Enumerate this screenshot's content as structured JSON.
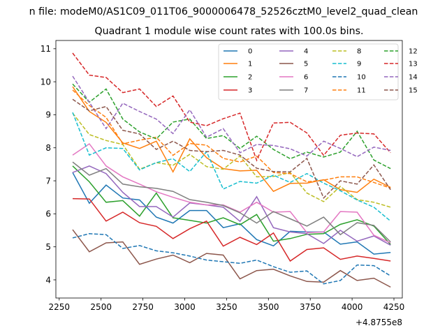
{
  "figure": {
    "suptitle": "n file: modeM0/AS1C09_011T06_9000006478_52526cztM0_level2_quad_clean",
    "title": "Quadrant 1 module wise count rates with 100.0s bins.",
    "x_offset_label": "+4.8755e8"
  },
  "chart_data": {
    "type": "line",
    "title": "Quadrant 1 module wise count rates with 100.0s bins.",
    "xlabel": "",
    "ylabel": "",
    "x_offset": 487550000,
    "xlim": [
      2230,
      4300
    ],
    "ylim": [
      3.45,
      11.25
    ],
    "xticks": [
      2250,
      2500,
      2750,
      3000,
      3250,
      3500,
      3750,
      4000,
      4250
    ],
    "yticks": [
      4,
      5,
      6,
      7,
      8,
      9,
      10,
      11
    ],
    "legend_position": "top-right",
    "x": [
      2330,
      2430,
      2530,
      2630,
      2730,
      2830,
      2930,
      3030,
      3130,
      3230,
      3330,
      3430,
      3530,
      3630,
      3730,
      3830,
      3930,
      4030,
      4130,
      4230
    ],
    "series": [
      {
        "name": "0",
        "color": "#1f77b4",
        "style": "solid",
        "values": [
          7.25,
          6.32,
          6.87,
          6.48,
          6.42,
          5.9,
          5.72,
          6.1,
          6.1,
          5.58,
          5.7,
          5.22,
          5.03,
          5.47,
          5.45,
          5.45,
          5.08,
          5.15,
          4.78,
          4.83
        ]
      },
      {
        "name": "1",
        "color": "#ff7f0e",
        "style": "solid",
        "values": [
          9.85,
          9.1,
          8.77,
          8.15,
          7.98,
          8.2,
          7.27,
          8.27,
          7.7,
          7.37,
          7.3,
          7.32,
          6.68,
          6.92,
          6.93,
          7.03,
          6.73,
          6.65,
          7.05,
          6.8
        ]
      },
      {
        "name": "2",
        "color": "#2ca02c",
        "style": "solid",
        "values": [
          7.45,
          6.97,
          6.35,
          6.4,
          5.93,
          6.63,
          5.88,
          5.8,
          5.72,
          5.88,
          5.67,
          5.98,
          5.17,
          5.25,
          5.38,
          5.4,
          5.68,
          5.82,
          5.63,
          5.07
        ]
      },
      {
        "name": "3",
        "color": "#d62728",
        "style": "solid",
        "values": [
          6.46,
          6.45,
          5.78,
          6.05,
          5.73,
          5.62,
          5.25,
          5.55,
          5.78,
          5.02,
          5.29,
          5.07,
          5.42,
          4.57,
          4.92,
          4.97,
          4.62,
          4.72,
          4.65,
          4.57
        ]
      },
      {
        "name": "4",
        "color": "#9467bd",
        "style": "solid",
        "values": [
          7.25,
          7.45,
          7.22,
          6.65,
          6.22,
          6.22,
          5.9,
          6.33,
          6.27,
          6.2,
          5.77,
          6.52,
          5.58,
          5.45,
          5.4,
          5.1,
          5.5,
          5.17,
          5.33,
          5.05
        ]
      },
      {
        "name": "5",
        "color": "#8c564b",
        "style": "solid",
        "values": [
          5.52,
          4.85,
          5.12,
          5.15,
          4.47,
          4.63,
          4.75,
          4.52,
          4.8,
          4.75,
          4.03,
          4.28,
          4.32,
          4.12,
          3.95,
          3.93,
          4.28,
          3.98,
          4.05,
          3.78
        ]
      },
      {
        "name": "6",
        "color": "#e377c2",
        "style": "solid",
        "values": [
          7.78,
          8.12,
          7.45,
          7.12,
          6.9,
          6.67,
          6.5,
          6.35,
          6.27,
          6.27,
          6.05,
          6.35,
          6.05,
          6.07,
          5.43,
          5.45,
          6.07,
          6.05,
          5.35,
          5.12
        ]
      },
      {
        "name": "7",
        "color": "#7f7f7f",
        "style": "solid",
        "values": [
          7.57,
          7.17,
          7.37,
          6.9,
          6.82,
          6.77,
          6.68,
          6.43,
          6.35,
          6.25,
          6.03,
          5.72,
          6.07,
          5.85,
          5.63,
          5.9,
          5.37,
          5.73,
          5.65,
          5.15
        ]
      },
      {
        "name": "8",
        "color": "#bcbd22",
        "style": "dashed",
        "values": [
          9.05,
          8.4,
          8.22,
          8.1,
          7.35,
          7.55,
          7.47,
          7.8,
          7.43,
          7.35,
          7.75,
          7.12,
          7.13,
          7.25,
          6.63,
          6.37,
          6.83,
          6.43,
          6.35,
          6.2
        ]
      },
      {
        "name": "9",
        "color": "#17becf",
        "style": "dashed",
        "values": [
          9.07,
          7.78,
          8.0,
          7.98,
          7.33,
          7.55,
          7.67,
          7.28,
          7.88,
          6.75,
          6.98,
          6.93,
          7.17,
          6.95,
          7.22,
          6.93,
          6.7,
          6.42,
          6.2,
          5.78
        ]
      },
      {
        "name": "10",
        "color": "#1f77b4",
        "style": "dashed",
        "values": [
          5.27,
          5.4,
          5.37,
          4.95,
          5.04,
          4.88,
          4.82,
          4.72,
          4.6,
          4.55,
          4.5,
          4.6,
          4.4,
          4.23,
          4.27,
          3.88,
          3.98,
          4.45,
          4.43,
          4.12
        ]
      },
      {
        "name": "11",
        "color": "#ff7f0e",
        "style": "dashed",
        "values": [
          9.75,
          9.28,
          8.92,
          8.12,
          8.23,
          8.32,
          7.77,
          8.13,
          8.08,
          7.68,
          7.57,
          7.75,
          7.25,
          7.22,
          6.97,
          7.02,
          7.12,
          7.12,
          6.95,
          6.78
        ]
      },
      {
        "name": "12",
        "color": "#2ca02c",
        "style": "dashed",
        "values": [
          9.93,
          9.38,
          9.78,
          8.87,
          8.48,
          8.27,
          8.78,
          8.87,
          8.28,
          8.37,
          7.98,
          8.35,
          7.95,
          7.67,
          7.87,
          7.72,
          7.87,
          8.5,
          7.63,
          7.37
        ]
      },
      {
        "name": "13",
        "color": "#d62728",
        "style": "dashed",
        "values": [
          10.87,
          10.2,
          10.13,
          9.67,
          9.78,
          9.25,
          9.57,
          8.78,
          8.67,
          8.88,
          9.05,
          7.62,
          8.75,
          8.77,
          8.45,
          7.77,
          8.38,
          8.45,
          8.42,
          7.85
        ]
      },
      {
        "name": "14",
        "color": "#9467bd",
        "style": "dashed",
        "values": [
          10.17,
          9.38,
          8.58,
          9.35,
          9.1,
          8.87,
          8.43,
          9.15,
          8.32,
          8.58,
          7.85,
          8.1,
          8.07,
          7.97,
          7.75,
          8.2,
          7.98,
          7.73,
          8.02,
          7.92
        ]
      },
      {
        "name": "15",
        "color": "#8c564b",
        "style": "dashed",
        "values": [
          9.47,
          9.12,
          9.25,
          8.53,
          8.42,
          7.95,
          8.2,
          7.92,
          7.88,
          7.92,
          7.78,
          7.38,
          7.28,
          7.27,
          7.68,
          6.48,
          7.0,
          6.9,
          7.48,
          6.73
        ]
      }
    ]
  }
}
